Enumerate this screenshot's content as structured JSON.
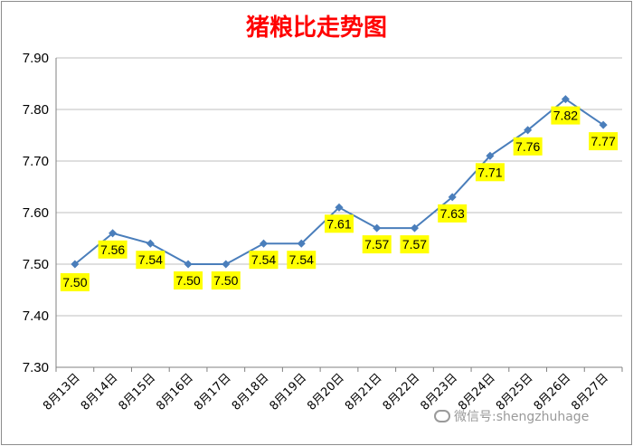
{
  "chart_data": {
    "type": "line",
    "title": "猪粮比走势图",
    "categories": [
      "8月13日",
      "8月14日",
      "8月15日",
      "8月16日",
      "8月17日",
      "8月18日",
      "8月19日",
      "8月20日",
      "8月21日",
      "8月22日",
      "8月23日",
      "8月24日",
      "8月25日",
      "8月26日",
      "8月27日"
    ],
    "values": [
      7.5,
      7.56,
      7.54,
      7.5,
      7.5,
      7.54,
      7.54,
      7.61,
      7.57,
      7.57,
      7.63,
      7.71,
      7.76,
      7.82,
      7.77
    ],
    "data_labels": [
      "7.50",
      "7.56",
      "7.54",
      "7.50",
      "7.50",
      "7.54",
      "7.54",
      "7.61",
      "7.57",
      "7.57",
      "7.63",
      "7.71",
      "7.76",
      "7.82",
      "7.77"
    ],
    "ylim": [
      7.3,
      7.9
    ],
    "yticks": [
      "7.30",
      "7.40",
      "7.50",
      "7.60",
      "7.70",
      "7.80",
      "7.90"
    ],
    "xlabel": "",
    "ylabel": "",
    "grid": true,
    "legend": "none",
    "colors": {
      "line": "#4a7ebb",
      "label_bg": "#ffff00",
      "title": "#ff0000"
    }
  },
  "watermark": {
    "text": "微信号:shengzhuhage",
    "icon": "wechat-icon"
  }
}
